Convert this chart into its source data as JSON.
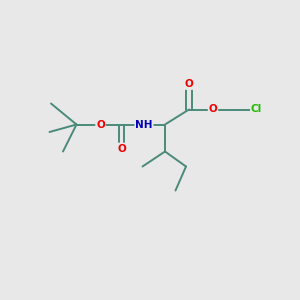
{
  "bg_color": "#e8e8e8",
  "bond_color": "#4a8a7a",
  "bond_lw": 1.4,
  "atom_colors": {
    "O": "#ee0000",
    "N": "#0000bb",
    "Cl": "#22bb00",
    "C": "#4a8a7a",
    "H": "#777777"
  },
  "font_size": 7.5,
  "fig_size": [
    3.0,
    3.0
  ],
  "dpi": 100,
  "xlim": [
    0,
    10
  ],
  "ylim": [
    0,
    10
  ]
}
